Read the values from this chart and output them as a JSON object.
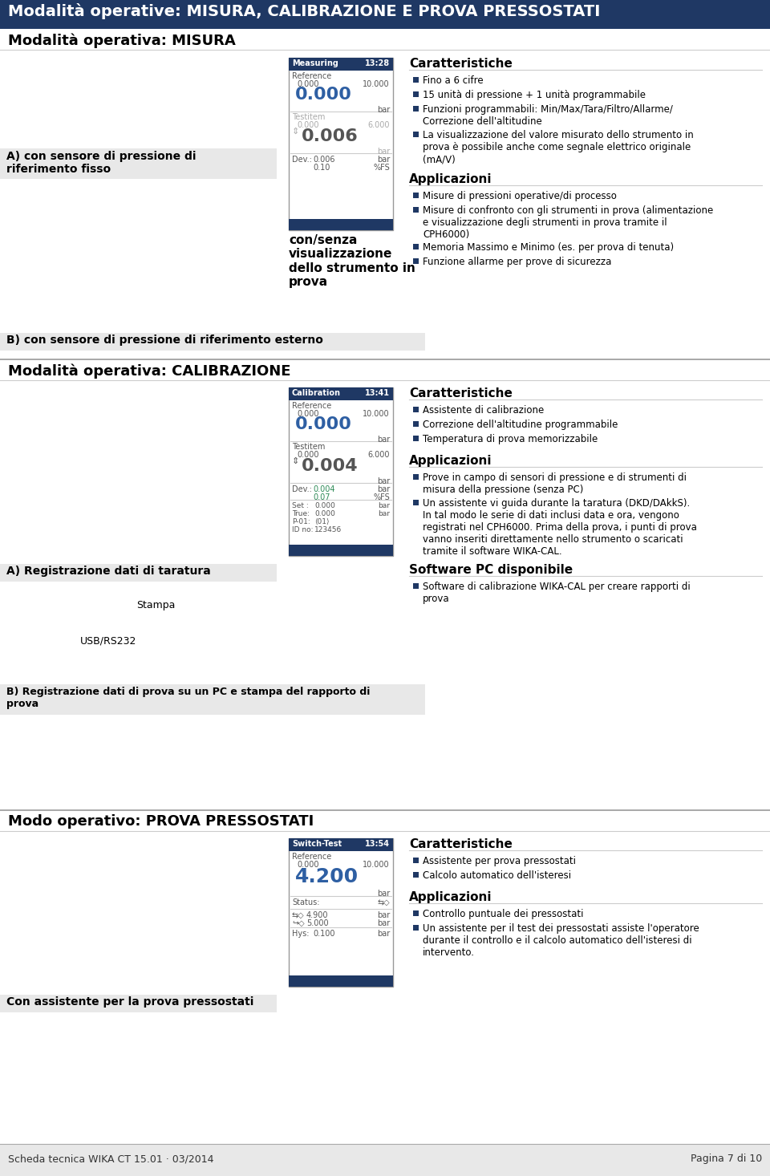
{
  "title": "Modalità operative: MISURA, CALIBRAZIONE E PROVA PRESSOSTATI",
  "bg_color": "#ffffff",
  "dark_blue": "#1f3864",
  "mid_blue": "#2e5fa3",
  "footer_bg": "#e8e8e8",
  "footer_left": "Scheda tecnica WIKA CT 15.01 · 03/2014",
  "footer_right": "Pagina 7 di 10",
  "section1_title": "Modalità operativa: MISURA",
  "section2_title": "Modalità operativa: CALIBRAZIONE",
  "section3_title": "Modo operativo: PROVA PRESSOSTATI",
  "misura_label_A": "A) con sensore di pressione di\nriferimento fisso",
  "misura_label_B": "B) con sensore di pressione di riferimento esterno",
  "misura_screen_title": "Measuring",
  "misura_screen_time": "13:28",
  "misura_display_label": "con/senza\nvisualizzazione\ndello strumento in\nprova",
  "caract1_title": "Caratteristiche",
  "caract1_bullets": [
    "Fino a 6 cifre",
    "15 unità di pressione + 1 unità programmabile",
    "Funzioni programmabili: Min/Max/Tara/Filtro/Allarme/\nCorrezione dell'altitudine",
    "La visualizzazione del valore misurato dello strumento in\nprova è possibile anche come segnale elettrico originale\n(mA/V)"
  ],
  "applic1_title": "Applicazioni",
  "applic1_bullets": [
    "Misure di pressioni operative/di processo",
    "Misure di confronto con gli strumenti in prova (alimentazione\ne visualizzazione degli strumenti in prova tramite il\nCPH6000)",
    "Memoria Massimo e Minimo (es. per prova di tenuta)",
    "Funzione allarme per prove di sicurezza"
  ],
  "calib_label_A": "A) Registrazione dati di taratura",
  "calib_label_B": "B) Registrazione dati di prova su un PC e stampa del rapporto di\nprova",
  "calib_screen_title": "Calibration",
  "calib_screen_time": "13:41",
  "caract2_title": "Caratteristiche",
  "caract2_bullets": [
    "Assistente di calibrazione",
    "Correzione dell'altitudine programmabile",
    "Temperatura di prova memorizzabile"
  ],
  "applic2_title": "Applicazioni",
  "applic2_bullets": [
    "Prove in campo di sensori di pressione e di strumenti di\nmisura della pressione (senza PC)",
    "Un assistente vi guida durante la taratura (DKD/DAkkS).\nIn tal modo le serie di dati inclusi data e ora, vengono\nregistrati nel CPH6000. Prima della prova, i punti di prova\nvanno inseriti direttamente nello strumento o scaricati\ntramite il software WIKA-CAL."
  ],
  "software_title": "Software PC disponibile",
  "software_bullets": [
    "Software di calibrazione WIKA-CAL per creare rapporti di\nprova"
  ],
  "prova_label": "Con assistente per la prova pressostati",
  "prova_screen_title": "Switch-Test",
  "prova_screen_time": "13:54",
  "caract3_title": "Caratteristiche",
  "caract3_bullets": [
    "Assistente per prova pressostati",
    "Calcolo automatico dell'isteresi"
  ],
  "applic3_title": "Applicazioni",
  "applic3_bullets": [
    "Controllo puntuale dei pressostati",
    "Un assistente per il test dei pressostati assiste l'operatore\ndurante il controllo e il calcolo automatico dell'isteresi di\nintervento."
  ]
}
